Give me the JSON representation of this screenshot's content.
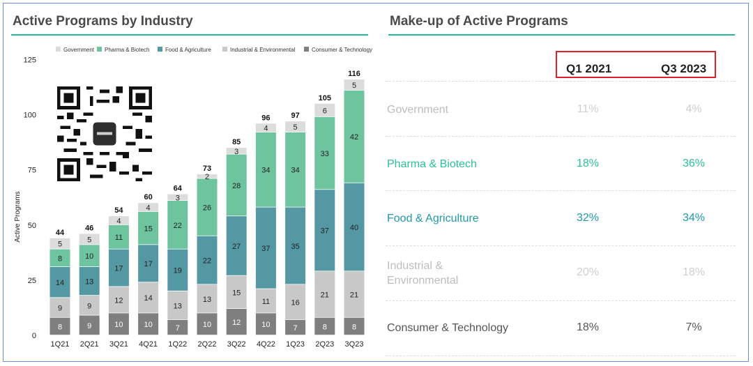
{
  "left_panel": {
    "title": "Active Programs by Industry"
  },
  "right_panel": {
    "title": "Make-up of Active Programs"
  },
  "chart_data": {
    "type": "bar",
    "stacked": true,
    "categories": [
      "1Q21",
      "2Q21",
      "3Q21",
      "4Q21",
      "1Q22",
      "2Q22",
      "3Q22",
      "4Q22",
      "1Q23",
      "2Q23",
      "3Q23"
    ],
    "series": [
      {
        "name": "Consumer & Technology",
        "color": "#7f7f7f",
        "values": [
          8,
          9,
          10,
          10,
          7,
          10,
          12,
          10,
          7,
          8,
          8
        ]
      },
      {
        "name": "Industrial & Environmental",
        "color": "#c8c8c8",
        "values": [
          9,
          9,
          12,
          14,
          13,
          13,
          15,
          11,
          16,
          21,
          21
        ]
      },
      {
        "name": "Food & Agriculture",
        "color": "#5498a4",
        "values": [
          14,
          13,
          17,
          17,
          19,
          22,
          27,
          37,
          35,
          37,
          40
        ]
      },
      {
        "name": "Pharma & Biotech",
        "color": "#6dc49e",
        "values": [
          8,
          10,
          11,
          15,
          22,
          26,
          28,
          34,
          34,
          33,
          42
        ]
      },
      {
        "name": "Government",
        "color": "#dcdcdc",
        "values": [
          5,
          5,
          4,
          4,
          3,
          2,
          3,
          4,
          5,
          6,
          5
        ]
      }
    ],
    "totals": [
      44,
      46,
      54,
      60,
      64,
      73,
      85,
      96,
      97,
      105,
      116
    ],
    "legend": [
      "Government",
      "Pharma & Biotech",
      "Food & Agriculture",
      "Industrial & Environmental",
      "Consumer & Technology"
    ],
    "ylabel": "Active Programs",
    "yticks": [
      0,
      25,
      50,
      75,
      100,
      125
    ],
    "ylim": [
      0,
      125
    ],
    "legend_position": "top"
  },
  "table": {
    "col1": "Q1 2021",
    "col2": "Q3 2023",
    "rows": [
      {
        "label": "Government",
        "v1": "11%",
        "v2": "4%",
        "color": "#bdbdbd"
      },
      {
        "label": "Pharma & Biotech",
        "v1": "18%",
        "v2": "36%",
        "color": "#2bbf9c"
      },
      {
        "label": "Food & Agriculture",
        "v1": "32%",
        "v2": "34%",
        "color": "#1f9aa8"
      },
      {
        "label": "Industrial &",
        "label2": "Environmental",
        "v1": "20%",
        "v2": "18%",
        "color": "#bdbdbd"
      },
      {
        "label": "Consumer & Technology",
        "v1": "18%",
        "v2": "7%",
        "color": "#555555"
      }
    ]
  }
}
